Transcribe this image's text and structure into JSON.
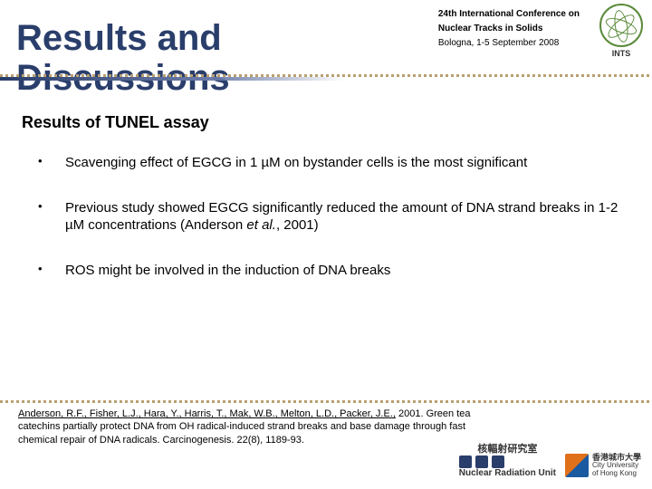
{
  "header": {
    "title_line1": "Results and",
    "title_line2": "Discussions",
    "conf_line1": "24th International Conference on",
    "conf_line2": "Nuclear Tracks in Solids",
    "conf_line3": "Bologna, 1-5 September 2008",
    "ints_label": "INTS"
  },
  "subtitle": "Results of TUNEL assay",
  "bullets": [
    "Scavenging effect of EGCG in 1 µM on bystander cells is the most significant",
    "Previous study showed EGCG significantly reduced the amount of DNA strand breaks in 1-2 µM concentrations (Anderson <em>et al.</em>, 2001)",
    "ROS might be involved in the induction of DNA breaks"
  ],
  "reference": {
    "authors": "Anderson, R.F., Fisher, L.J., Hara, Y., Harris, T., Mak, W.B., Melton, L.D., Packer, J.E.,",
    "rest": " 2001. Green tea catechins partially protect DNA from OH radical-induced strand breaks and base damage through fast chemical repair of DNA radicals. Carcinogenesis. 22(8), 1189-93."
  },
  "footer": {
    "nru_cn": "核輻射研究室",
    "nru_en": "Nuclear Radiation Unit",
    "cityu_cn": "香港城市大學",
    "cityu_en1": "City University",
    "cityu_en2": "of Hong Kong"
  },
  "colors": {
    "title": "#2a3e6b",
    "divider": "#b8a070",
    "background": "#ffffff"
  }
}
